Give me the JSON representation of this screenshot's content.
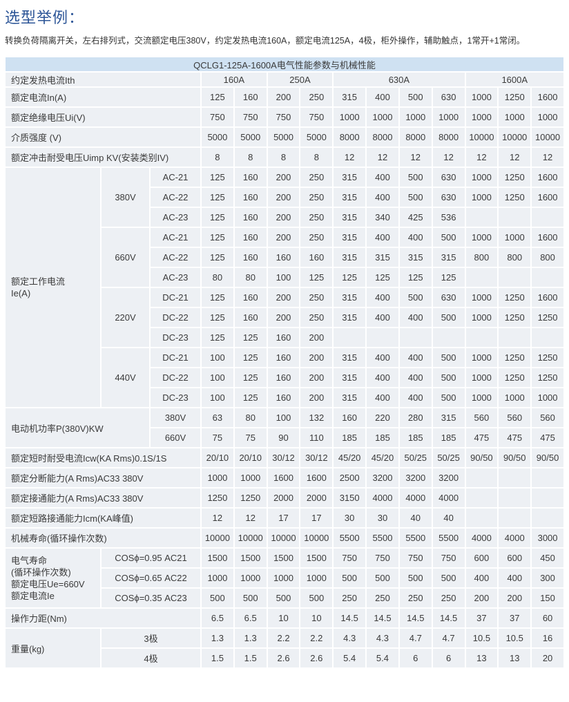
{
  "title": "选型举例：",
  "description": "转换负荷隔离开关，左右排列式，交流额定电压380V，约定发热电流160A，额定电流125A，4极，柜外操作，辅助触点，1常开+1常闭。",
  "table": {
    "caption": "QCLG1-125A-1600A电气性能参数与机械性能",
    "ith": {
      "label": "约定发热电流Ith",
      "groups": [
        "160A",
        "250A",
        "630A",
        "1600A"
      ]
    },
    "top_rows": [
      {
        "label": "额定电流In(A)",
        "values": [
          "125",
          "160",
          "200",
          "250",
          "315",
          "400",
          "500",
          "630",
          "1000",
          "1250",
          "1600"
        ]
      },
      {
        "label": "额定绝缘电压Ui(V)",
        "values": [
          "750",
          "750",
          "750",
          "750",
          "1000",
          "1000",
          "1000",
          "1000",
          "1000",
          "1000",
          "1000"
        ]
      },
      {
        "label": "介质强度 (V)",
        "values": [
          "5000",
          "5000",
          "5000",
          "5000",
          "8000",
          "8000",
          "8000",
          "8000",
          "10000",
          "10000",
          "10000"
        ]
      },
      {
        "label": "额定冲击耐受电压Uimp  KV(安装类别IV)",
        "values": [
          "8",
          "8",
          "8",
          "8",
          "12",
          "12",
          "12",
          "12",
          "12",
          "12",
          "12"
        ]
      }
    ],
    "ie": {
      "label": "额定工作电流\nIe(A)",
      "groups": [
        {
          "voltage": "380V",
          "rows": [
            {
              "category": "AC-21",
              "values": [
                "125",
                "160",
                "200",
                "250",
                "315",
                "400",
                "500",
                "630",
                "1000",
                "1250",
                "1600"
              ]
            },
            {
              "category": "AC-22",
              "values": [
                "125",
                "160",
                "200",
                "250",
                "315",
                "400",
                "500",
                "630",
                "1000",
                "1250",
                "1600"
              ]
            },
            {
              "category": "AC-23",
              "values": [
                "125",
                "160",
                "200",
                "250",
                "315",
                "340",
                "425",
                "536",
                "",
                "",
                ""
              ]
            }
          ]
        },
        {
          "voltage": "660V",
          "rows": [
            {
              "category": "AC-21",
              "values": [
                "125",
                "160",
                "200",
                "250",
                "315",
                "400",
                "400",
                "500",
                "1000",
                "1000",
                "1600"
              ]
            },
            {
              "category": "AC-22",
              "values": [
                "125",
                "160",
                "160",
                "160",
                "315",
                "315",
                "315",
                "315",
                "800",
                "800",
                "800"
              ]
            },
            {
              "category": "AC-23",
              "values": [
                "80",
                "80",
                "100",
                "125",
                "125",
                "125",
                "125",
                "125",
                "",
                "",
                ""
              ]
            }
          ]
        },
        {
          "voltage": "220V",
          "rows": [
            {
              "category": "DC-21",
              "values": [
                "125",
                "160",
                "200",
                "250",
                "315",
                "400",
                "500",
                "630",
                "1000",
                "1250",
                "1600"
              ]
            },
            {
              "category": "DC-22",
              "values": [
                "125",
                "160",
                "200",
                "250",
                "315",
                "400",
                "400",
                "500",
                "1000",
                "1250",
                "1250"
              ]
            },
            {
              "category": "DC-23",
              "values": [
                "125",
                "125",
                "160",
                "200",
                "",
                "",
                "",
                "",
                "",
                "",
                ""
              ]
            }
          ]
        },
        {
          "voltage": "440V",
          "rows": [
            {
              "category": "DC-21",
              "values": [
                "100",
                "125",
                "160",
                "200",
                "315",
                "400",
                "400",
                "500",
                "1000",
                "1250",
                "1250"
              ]
            },
            {
              "category": "DC-22",
              "values": [
                "100",
                "125",
                "160",
                "200",
                "315",
                "400",
                "400",
                "500",
                "1000",
                "1250",
                "1250"
              ]
            },
            {
              "category": "DC-23",
              "values": [
                "100",
                "125",
                "160",
                "200",
                "315",
                "400",
                "400",
                "500",
                "1000",
                "1000",
                "1000"
              ]
            }
          ]
        }
      ]
    },
    "motor": {
      "label": "电动机功率P(380V)KW",
      "rows": [
        {
          "voltage": "380V",
          "values": [
            "63",
            "80",
            "100",
            "132",
            "160",
            "220",
            "280",
            "315",
            "560",
            "560",
            "560"
          ]
        },
        {
          "voltage": "660V",
          "values": [
            "75",
            "75",
            "90",
            "110",
            "185",
            "185",
            "185",
            "185",
            "475",
            "475",
            "475"
          ]
        }
      ]
    },
    "mid_rows": [
      {
        "label": "额定短时耐受电流Icw(KA Rms)0.1S/1S",
        "values": [
          "20/10",
          "20/10",
          "30/12",
          "30/12",
          "45/20",
          "45/20",
          "50/25",
          "50/25",
          "90/50",
          "90/50",
          "90/50"
        ]
      },
      {
        "label": "额定分断能力(A Rms)AC33 380V",
        "values": [
          "1000",
          "1000",
          "1600",
          "1600",
          "2500",
          "3200",
          "3200",
          "3200",
          "",
          "",
          ""
        ]
      },
      {
        "label": "额定接通能力(A Rms)AC33 380V",
        "values": [
          "1250",
          "1250",
          "2000",
          "2000",
          "3150",
          "4000",
          "4000",
          "4000",
          "",
          "",
          ""
        ]
      },
      {
        "label": "额定短路接通能力Icm(KA峰值)",
        "values": [
          "12",
          "12",
          "17",
          "17",
          "30",
          "30",
          "40",
          "40",
          "",
          "",
          ""
        ]
      },
      {
        "label": "机械寿命(循环操作次数)",
        "values": [
          "10000",
          "10000",
          "10000",
          "10000",
          "5500",
          "5500",
          "5500",
          "5500",
          "4000",
          "4000",
          "3000"
        ]
      }
    ],
    "electrical_life": {
      "label": "电气寿命\n(循环操作次数)\n额定电压Ue=660V\n额定电流Ie",
      "rows": [
        {
          "condition": "COSϕ=0.95   AC21",
          "values": [
            "1500",
            "1500",
            "1500",
            "1500",
            "750",
            "750",
            "750",
            "750",
            "600",
            "600",
            "450"
          ]
        },
        {
          "condition": "COSϕ=0.65   AC22",
          "values": [
            "1000",
            "1000",
            "1000",
            "1000",
            "500",
            "500",
            "500",
            "500",
            "400",
            "400",
            "300"
          ]
        },
        {
          "condition": "COSϕ=0.35   AC23",
          "values": [
            "500",
            "500",
            "500",
            "500",
            "250",
            "250",
            "250",
            "250",
            "200",
            "200",
            "150"
          ]
        }
      ]
    },
    "torque": {
      "label": "操作力距(Nm)",
      "values": [
        "6.5",
        "6.5",
        "10",
        "10",
        "14.5",
        "14.5",
        "14.5",
        "14.5",
        "37",
        "37",
        "60"
      ]
    },
    "weight": {
      "label": "重量(kg)",
      "rows": [
        {
          "poles": "3极",
          "values": [
            "1.3",
            "1.3",
            "2.2",
            "2.2",
            "4.3",
            "4.3",
            "4.7",
            "4.7",
            "10.5",
            "10.5",
            "16"
          ]
        },
        {
          "poles": "4极",
          "values": [
            "1.5",
            "1.5",
            "2.6",
            "2.6",
            "5.4",
            "5.4",
            "6",
            "6",
            "13",
            "13",
            "20"
          ]
        }
      ]
    }
  }
}
